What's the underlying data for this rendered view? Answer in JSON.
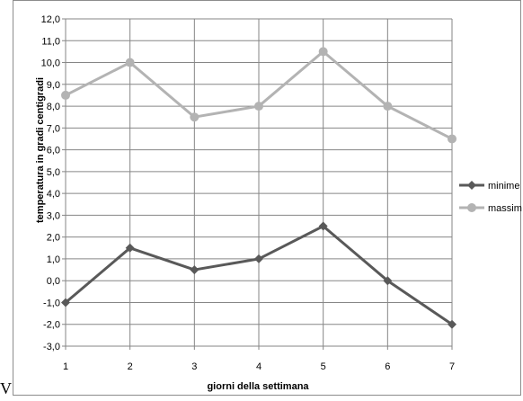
{
  "stray_text": "V",
  "chart_data": {
    "type": "line",
    "title": "",
    "xlabel": "giorni della settimana",
    "ylabel": "temperatura in gradi centigradi",
    "x": [
      1,
      2,
      3,
      4,
      5,
      6,
      7
    ],
    "x_tick_labels": [
      "1",
      "2",
      "3",
      "4",
      "5",
      "6",
      "7"
    ],
    "ylim": [
      -3,
      12
    ],
    "y_tick_labels": [
      "-3,0",
      "-2,0",
      "-1,0",
      "0,0",
      "1,0",
      "2,0",
      "3,0",
      "4,0",
      "5,0",
      "6,0",
      "7,0",
      "8,0",
      "9,0",
      "10,0",
      "11,0",
      "12,0"
    ],
    "grid": true,
    "legend_position": "right",
    "series": [
      {
        "name": "minime",
        "values": [
          -1.0,
          1.5,
          0.5,
          1.0,
          2.5,
          0.0,
          -2.0
        ],
        "color": "#595959",
        "marker": "diamond"
      },
      {
        "name": "massime",
        "values": [
          8.5,
          10.0,
          7.5,
          8.0,
          10.5,
          8.0,
          6.5
        ],
        "color": "#b3b3b3",
        "marker": "circle"
      }
    ]
  }
}
